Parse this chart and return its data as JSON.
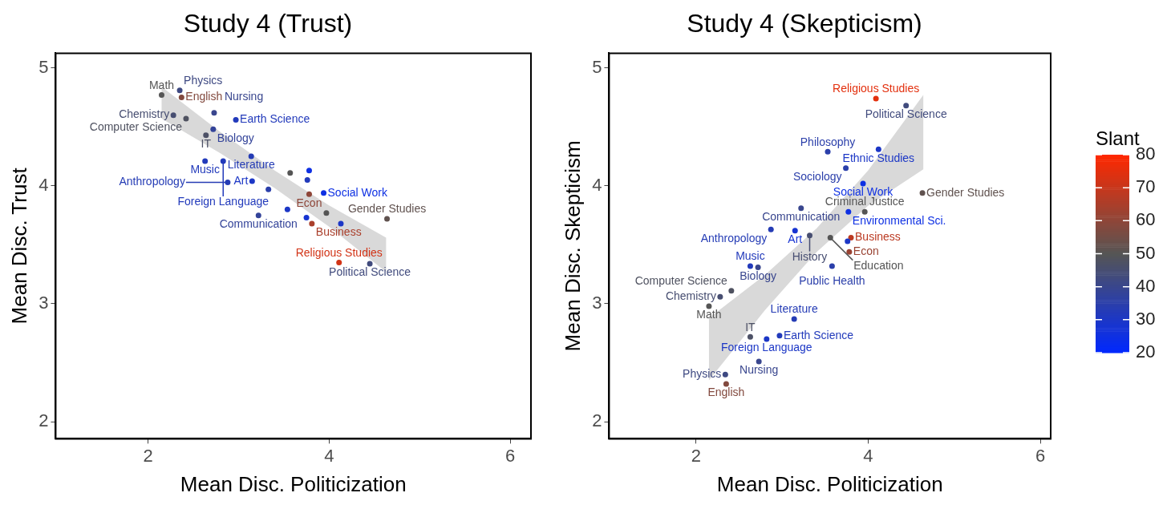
{
  "chart_data": [
    {
      "type": "scatter",
      "title": "Study 4 (Trust)",
      "xlabel": "Mean Disc. Politicization",
      "ylabel": "Mean Disc. Trust",
      "xlim": [
        0.98,
        6.23
      ],
      "xticks": [
        2,
        4,
        6
      ],
      "ylim": [
        1.855,
        5.125
      ],
      "yticks": [
        2,
        3,
        4,
        5
      ],
      "grid": false,
      "marker": "circle",
      "series": [
        {
          "type": "line",
          "color": "#d9d9d9",
          "x": [
            2.15,
            2.8,
            3.4,
            4.0,
            4.63
          ],
          "values": [
            null,
            null,
            null,
            null,
            null
          ],
          "lower": [
            4.57,
            4.277,
            3.98,
            3.654,
            3.27
          ],
          "upper": [
            4.84,
            4.457,
            4.13,
            3.834,
            3.56
          ]
        },
        {
          "type": "scatter",
          "x": [
            2.15,
            2.35,
            2.37,
            2.28,
            2.42,
            2.73,
            2.97,
            2.72,
            2.64,
            3.14,
            2.63,
            2.83,
            2.88,
            3.15,
            3.57,
            3.78,
            3.76,
            3.33,
            3.94,
            3.78,
            4.64,
            3.97,
            3.54,
            3.22,
            3.75,
            3.81,
            4.13,
            4.11,
            4.45
          ],
          "values": [
            4.77,
            4.81,
            4.75,
            4.6,
            4.57,
            4.62,
            4.56,
            4.48,
            4.43,
            4.25,
            4.21,
            4.21,
            4.03,
            4.04,
            4.11,
            4.13,
            4.05,
            3.97,
            3.94,
            3.93,
            3.72,
            3.77,
            3.8,
            3.75,
            3.73,
            3.68,
            3.68,
            3.35,
            3.34
          ],
          "colors": [
            "#555555",
            "#3e4982",
            "#82493e",
            "#474e71",
            "#4f5260",
            "#39468e",
            "#223abb",
            "#334399",
            "#4d5166",
            "#253cb5",
            "#223abb",
            "#223abb",
            "#253cb5",
            "#1c37c6",
            "#555555",
            "#0e30e3",
            "#223abb",
            "#2b3faa",
            "#0e30e3",
            "#8e4639",
            "#60524f",
            "#555555",
            "#1c37c6",
            "#334399",
            "#1734d2",
            "#aa3f2b",
            "#1c37c6",
            "#d23417",
            "#414b7d"
          ],
          "value_labels": [
            "Math",
            "Physics",
            "English",
            "Chemistry",
            "Computer Science",
            "Nursing",
            "Earth Science",
            "Biology",
            "IT",
            "Literature",
            "Music",
            "Foreign Language",
            "Anthropology",
            "Art",
            null,
            null,
            null,
            null,
            "Social Work",
            "Econ",
            "Gender Studies",
            null,
            null,
            "Communication",
            null,
            "Business",
            null,
            "Religious Studies",
            "Political Science"
          ]
        }
      ]
    },
    {
      "type": "scatter",
      "title": "Study 4 (Skepticism)",
      "xlabel": "Mean Disc. Politicization",
      "ylabel": "Mean Disc. Skepticism",
      "xlim": [
        0.99,
        6.12
      ],
      "xticks": [
        2,
        4,
        6
      ],
      "ylim": [
        1.855,
        5.125
      ],
      "yticks": [
        2,
        3,
        4,
        5
      ],
      "grid": false,
      "marker": "circle",
      "clim": [
        20,
        80
      ],
      "cticks": [
        20,
        30,
        40,
        50,
        60,
        70,
        80
      ],
      "clabel": "Slant",
      "series": [
        {
          "type": "line",
          "color": "#d9d9d9",
          "x": [
            2.15,
            2.8,
            3.4,
            4.0,
            4.64
          ],
          "values": [
            null,
            null,
            null,
            null,
            null
          ],
          "lower": [
            2.35,
            2.945,
            3.439,
            3.832,
            4.14
          ],
          "upper": [
            2.88,
            3.245,
            3.639,
            4.132,
            4.77
          ]
        },
        {
          "type": "scatter",
          "x": [
            4.09,
            4.44,
            3.53,
            4.12,
            3.74,
            3.94,
            4.63,
            3.22,
            3.77,
            3.96,
            2.87,
            3.15,
            3.32,
            3.56,
            3.8,
            3.76,
            3.78,
            3.58,
            2.63,
            2.72,
            2.41,
            2.28,
            2.15,
            3.14,
            2.63,
            2.97,
            2.82,
            2.73,
            2.34,
            2.35
          ],
          "values": [
            4.74,
            4.68,
            4.29,
            4.31,
            4.15,
            4.02,
            3.94,
            3.81,
            3.78,
            3.78,
            3.63,
            3.62,
            3.58,
            3.56,
            3.56,
            3.53,
            3.44,
            3.32,
            3.32,
            3.31,
            3.11,
            3.06,
            2.98,
            2.87,
            2.72,
            2.73,
            2.7,
            2.51,
            2.4,
            2.32
          ],
          "cvalues": [
            75,
            43,
            35,
            30,
            35,
            25,
            52,
            40,
            25,
            50,
            33,
            28,
            45,
            50,
            68,
            30,
            62,
            35,
            32,
            40,
            48,
            45,
            50,
            33,
            47,
            32,
            30,
            40,
            42,
            58
          ],
          "colors": [
            "#e3300e",
            "#414b7d",
            "#2b3faa",
            "#1c37c6",
            "#2b3faa",
            "#0e30e3",
            "#60524f",
            "#39468e",
            "#0e30e3",
            "#555555",
            "#253cb5",
            "#1734d2",
            "#474e71",
            "#555555",
            "#bb3a22",
            "#1c37c6",
            "#994333",
            "#2b3faa",
            "#223abb",
            "#39468e",
            "#4f5260",
            "#474e71",
            "#555555",
            "#253cb5",
            "#4d5166",
            "#223abb",
            "#1c37c6",
            "#39468e",
            "#3e4982",
            "#82493e"
          ],
          "value_labels": [
            "Religious Studies",
            "Political Science",
            "Philosophy",
            "Ethnic Studies",
            "Sociology",
            "Social Work",
            "Gender Studies",
            "Communication",
            "Environmental Sci.",
            "Criminal Justice",
            "Anthropology",
            "Art",
            "History",
            "Education",
            "Business",
            null,
            "Econ",
            "Public Health",
            "Music",
            "Biology",
            "Computer Science",
            "Chemistry",
            "Math",
            "Literature",
            "IT",
            "Earth Science",
            "Foreign Language",
            "Nursing",
            "Physics",
            "English"
          ]
        }
      ]
    }
  ]
}
